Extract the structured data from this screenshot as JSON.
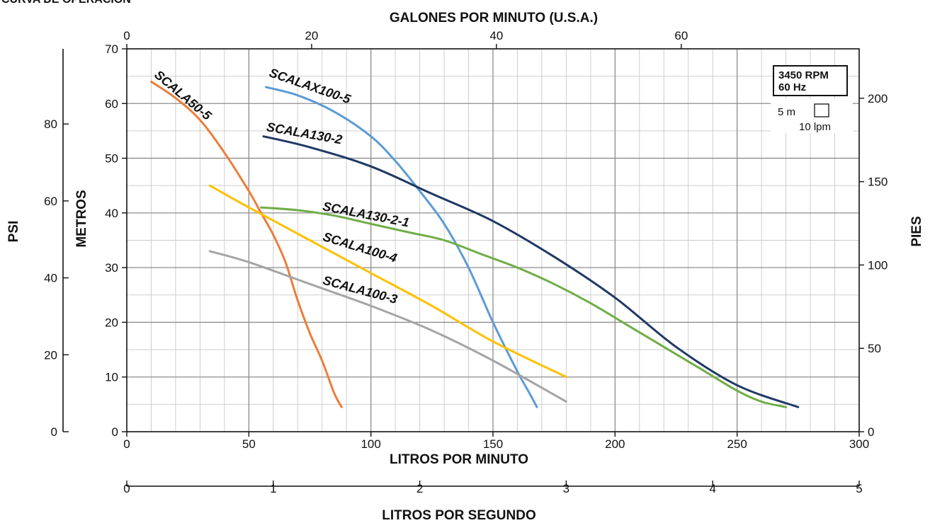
{
  "page": {
    "title": "CURVA DE OPERACIÓN"
  },
  "chart_data": {
    "type": "line",
    "title": "CURVA DE OPERACIÓN",
    "xlabel": "LITROS POR MINUTO",
    "ylabel": "METROS",
    "xlim": [
      0,
      300
    ],
    "ylim": [
      0,
      70
    ],
    "x_ticks": [
      0,
      50,
      100,
      150,
      200,
      250,
      300
    ],
    "y_ticks": [
      0,
      10,
      20,
      30,
      40,
      50,
      60,
      70
    ],
    "grid": true,
    "secondary_axes": {
      "top": {
        "label": "GALONES POR MINUTO (U.S.A.)",
        "ticks": [
          0,
          20,
          40,
          60
        ]
      },
      "right": {
        "label": "PIES",
        "ticks": [
          0,
          50,
          100,
          150,
          200
        ]
      },
      "psi": {
        "label": "PSI",
        "ticks": [
          0,
          20,
          40,
          60,
          80
        ]
      },
      "bottom_lps": {
        "label": "LITROS POR SEGUNDO",
        "ticks": [
          0,
          1,
          2,
          3,
          4,
          5
        ]
      }
    },
    "legend": {
      "line1": "3450 RPM",
      "line2": "60 Hz",
      "scale_m": "5 m",
      "scale_lpm": "10 lpm"
    },
    "series": [
      {
        "name": "SCALA50-5",
        "color": "#ec7d3a",
        "x": [
          10,
          20,
          30,
          40,
          50,
          55,
          60,
          65,
          70,
          75,
          80,
          85,
          88
        ],
        "y": [
          64,
          61,
          57,
          51,
          44,
          40,
          36,
          31,
          24,
          18,
          13,
          7,
          4.5
        ]
      },
      {
        "name": "SCALAX100-5",
        "color": "#5b9bd5",
        "x": [
          57,
          70,
          85,
          100,
          110,
          120,
          130,
          140,
          150,
          160,
          165,
          168
        ],
        "y": [
          63,
          61.5,
          58.5,
          54,
          49.5,
          44,
          38,
          30,
          20,
          11,
          7,
          4.5
        ]
      },
      {
        "name": "SCALA130-2",
        "color": "#1f3864",
        "x": [
          56,
          75,
          100,
          125,
          150,
          175,
          200,
          225,
          250,
          275
        ],
        "y": [
          54,
          52,
          48.5,
          43.5,
          38.5,
          32,
          24.5,
          15.5,
          8.5,
          4.5
        ]
      },
      {
        "name": "SCALA130-2-1",
        "color": "#70ad47",
        "x": [
          55,
          70,
          85,
          100,
          115,
          130,
          145,
          160,
          175,
          190,
          205,
          220,
          235,
          250,
          260,
          270
        ],
        "y": [
          41,
          40.5,
          39.5,
          38,
          36.5,
          35,
          32.5,
          30,
          27,
          23.5,
          19.5,
          15.5,
          11.5,
          7.5,
          5.5,
          4.5
        ]
      },
      {
        "name": "SCALA100-4",
        "color": "#ffc000",
        "x": [
          34,
          50,
          75,
          100,
          125,
          150,
          180
        ],
        "y": [
          45,
          41,
          35,
          29,
          23,
          16.5,
          10
        ]
      },
      {
        "name": "SCALA100-3",
        "color": "#a5a5a5",
        "x": [
          34,
          50,
          75,
          100,
          125,
          150,
          180
        ],
        "y": [
          33,
          31,
          27,
          23,
          18.5,
          13,
          5.5
        ]
      }
    ]
  }
}
